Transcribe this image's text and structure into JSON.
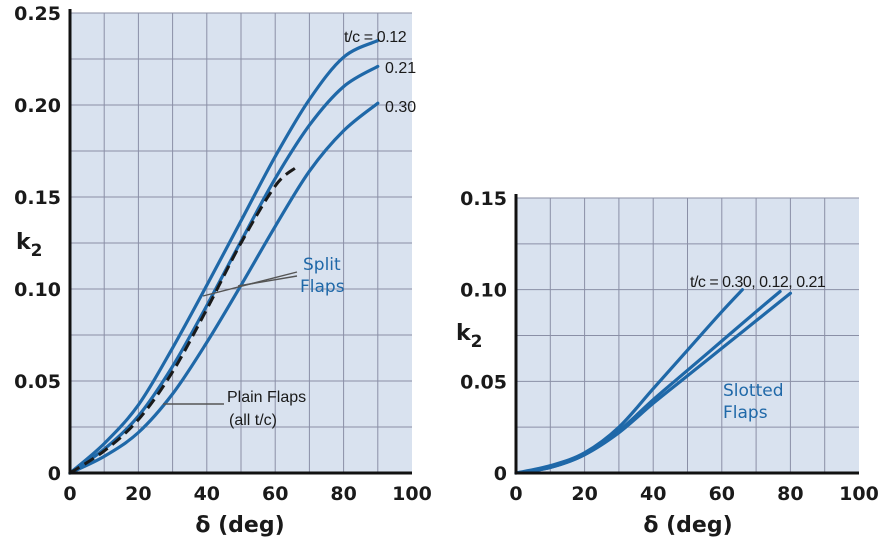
{
  "colors": {
    "plot_bg": "#d9e2ef",
    "curve": "#1f68a8",
    "dashed": "#1a1a1a",
    "grid": "#8a8fa6"
  },
  "chart_data": [
    {
      "type": "line",
      "xlabel": "δ (deg)",
      "ylabel_main": "k",
      "ylabel_sub": "2",
      "xlim": [
        0,
        100
      ],
      "ylim": [
        0,
        0.25
      ],
      "x_ticks": [
        "0",
        "20",
        "40",
        "60",
        "80",
        "100"
      ],
      "y_ticks": [
        "0",
        "0.05",
        "0.10",
        "0.15",
        "0.20",
        "0.25"
      ],
      "grid": true,
      "series": [
        {
          "name": "0.12",
          "style": "solid",
          "x": [
            0,
            10,
            20,
            30,
            40,
            50,
            60,
            70,
            80,
            90
          ],
          "y": [
            0,
            0.016,
            0.037,
            0.068,
            0.102,
            0.137,
            0.172,
            0.203,
            0.226,
            0.235
          ]
        },
        {
          "name": "0.21",
          "style": "solid",
          "x": [
            0,
            10,
            20,
            30,
            40,
            50,
            60,
            70,
            80,
            90
          ],
          "y": [
            0,
            0.013,
            0.031,
            0.058,
            0.091,
            0.126,
            0.16,
            0.189,
            0.21,
            0.221
          ]
        },
        {
          "name": "0.30",
          "style": "solid",
          "x": [
            0,
            10,
            20,
            30,
            40,
            50,
            60,
            70,
            80,
            90
          ],
          "y": [
            0,
            0.009,
            0.022,
            0.043,
            0.071,
            0.102,
            0.134,
            0.164,
            0.186,
            0.201
          ]
        },
        {
          "name": "Plain Flaps",
          "style": "dashed",
          "x": [
            0,
            10,
            20,
            30,
            40,
            50,
            60,
            66
          ],
          "y": [
            0,
            0.012,
            0.029,
            0.055,
            0.089,
            0.125,
            0.156,
            0.166
          ]
        }
      ],
      "annotations": {
        "tc_label": "t/c = 0.12",
        "label_021": "0.21",
        "label_030": "0.30",
        "split_line1": "Split",
        "split_line2": "Flaps",
        "plain_line1": "Plain Flaps",
        "plain_line2": "(all t/c)"
      }
    },
    {
      "type": "line",
      "xlabel": "δ (deg)",
      "ylabel_main": "k",
      "ylabel_sub": "2",
      "xlim": [
        0,
        100
      ],
      "ylim": [
        0,
        0.15
      ],
      "x_ticks": [
        "0",
        "20",
        "40",
        "60",
        "80",
        "100"
      ],
      "y_ticks": [
        "0",
        "0.05",
        "0.10",
        "0.15"
      ],
      "grid": true,
      "series": [
        {
          "name": "0.30",
          "style": "solid",
          "x": [
            0,
            10,
            20,
            30,
            40,
            50,
            60,
            66
          ],
          "y": [
            0,
            0.004,
            0.011,
            0.025,
            0.046,
            0.067,
            0.088,
            0.1
          ]
        },
        {
          "name": "0.12",
          "style": "solid",
          "x": [
            0,
            10,
            20,
            30,
            40,
            50,
            60,
            70,
            77
          ],
          "y": [
            0,
            0.003,
            0.01,
            0.023,
            0.04,
            0.056,
            0.072,
            0.088,
            0.099
          ]
        },
        {
          "name": "0.21",
          "style": "solid",
          "x": [
            0,
            10,
            20,
            30,
            40,
            50,
            60,
            70,
            80
          ],
          "y": [
            0,
            0.003,
            0.01,
            0.022,
            0.038,
            0.053,
            0.068,
            0.083,
            0.098
          ]
        }
      ],
      "annotations": {
        "tc_label": "t/c = 0.30, 0.12, 0.21",
        "slotted_line1": "Slotted",
        "slotted_line2": "Flaps"
      }
    }
  ]
}
